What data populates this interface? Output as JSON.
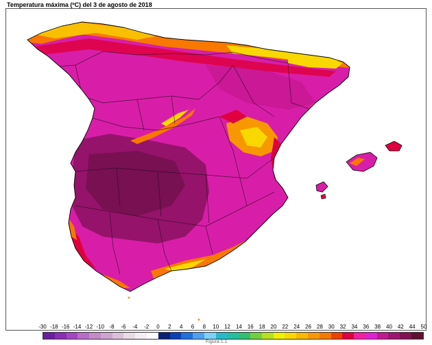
{
  "map": {
    "title": "Temperatura máxima (ºC) del 3 de agosto de 2018"
  },
  "legend": {
    "labels": [
      "-30",
      "-18",
      "-16",
      "-14",
      "-12",
      "-10",
      "-8",
      "-6",
      "-4",
      "-2",
      "0",
      "2",
      "4",
      "6",
      "8",
      "10",
      "12",
      "14",
      "16",
      "18",
      "20",
      "22",
      "24",
      "26",
      "28",
      "30",
      "32",
      "34",
      "36",
      "38",
      "40",
      "42",
      "44",
      "50"
    ],
    "colors": [
      "#6a1fa0",
      "#8a2fb5",
      "#a645c4",
      "#b86cc8",
      "#c48ac9",
      "#cfa3cf",
      "#dcbfd9",
      "#e8dbe8",
      "#f3eef3",
      "#ffffff",
      "#0a1f7a",
      "#0a3fb5",
      "#1f6fdc",
      "#4f9ff0",
      "#7fd0f8",
      "#2ab8c8",
      "#20c0a0",
      "#30c070",
      "#70d040",
      "#b8e020",
      "#f0f000",
      "#f8d800",
      "#f8b800",
      "#f89800",
      "#f87800",
      "#f04000",
      "#e00040",
      "#f020a0",
      "#e020d0",
      "#c01890",
      "#a01470",
      "#801050",
      "#601030"
    ]
  },
  "footer": {
    "text": "Figura 1.1"
  }
}
